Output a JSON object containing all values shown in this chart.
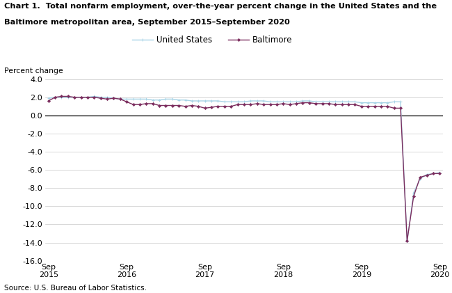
{
  "title_line1": "Chart 1.  Total nonfarm employment, over-the-year percent change in the United States and the",
  "title_line2": "Baltimore metropolitan area, September 2015–September 2020",
  "ylabel": "Percent change",
  "source": "Source: U.S. Bureau of Labor Statistics.",
  "ylim": [
    -16.0,
    4.0
  ],
  "yticks": [
    4.0,
    2.0,
    0.0,
    -2.0,
    -4.0,
    -6.0,
    -8.0,
    -10.0,
    -12.0,
    -14.0,
    -16.0
  ],
  "us_color": "#a8d4e6",
  "balt_color": "#7b2d5e",
  "us_label": "United States",
  "balt_label": "Baltimore",
  "us_data": [
    1.9,
    2.0,
    2.0,
    2.0,
    2.0,
    2.0,
    2.0,
    2.1,
    2.0,
    2.0,
    1.9,
    1.8,
    1.8,
    1.8,
    1.8,
    1.8,
    1.7,
    1.7,
    1.8,
    1.8,
    1.7,
    1.7,
    1.6,
    1.6,
    1.6,
    1.6,
    1.6,
    1.5,
    1.5,
    1.5,
    1.5,
    1.6,
    1.6,
    1.6,
    1.5,
    1.5,
    1.5,
    1.5,
    1.5,
    1.6,
    1.6,
    1.5,
    1.5,
    1.5,
    1.5,
    1.5,
    1.5,
    1.5,
    1.4,
    1.4,
    1.4,
    1.4,
    1.4,
    1.5,
    1.5,
    -13.9,
    -8.5,
    -7.0,
    -6.5,
    -6.4,
    -6.3
  ],
  "balt_data": [
    1.6,
    2.0,
    2.1,
    2.1,
    2.0,
    2.0,
    2.0,
    2.0,
    1.9,
    1.8,
    1.9,
    1.8,
    1.5,
    1.2,
    1.2,
    1.3,
    1.3,
    1.1,
    1.1,
    1.1,
    1.1,
    1.0,
    1.1,
    1.0,
    0.8,
    0.9,
    1.0,
    1.0,
    1.0,
    1.2,
    1.2,
    1.2,
    1.3,
    1.2,
    1.2,
    1.2,
    1.3,
    1.2,
    1.3,
    1.4,
    1.4,
    1.3,
    1.3,
    1.3,
    1.2,
    1.2,
    1.2,
    1.2,
    1.0,
    1.0,
    1.0,
    1.0,
    1.0,
    0.8,
    0.8,
    -13.8,
    -8.9,
    -6.8,
    -6.6,
    -6.4,
    -6.4
  ],
  "n_months": 61,
  "sep_indices": [
    0,
    12,
    24,
    36,
    48,
    60
  ],
  "sep_labels": [
    "Sep\n2015",
    "Sep\n2016",
    "Sep\n2017",
    "Sep\n2018",
    "Sep\n2019",
    "Sep\n2020"
  ]
}
